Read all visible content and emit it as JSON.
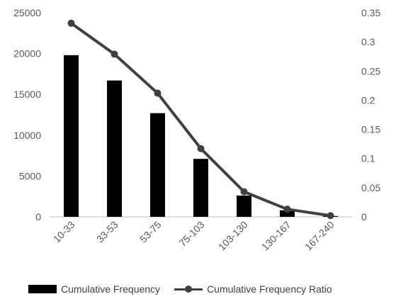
{
  "chart_data": {
    "type": "bar+line",
    "categories": [
      "10-33",
      "33-53",
      "53-75",
      "75-103",
      "103-130",
      "130-167",
      "167-240"
    ],
    "series": [
      {
        "name": "Cumulative Frequency",
        "type": "bar",
        "axis": "left",
        "values": [
          19800,
          16700,
          12700,
          7100,
          2600,
          800,
          100
        ]
      },
      {
        "name": "Cumulative Frequency Ratio",
        "type": "line",
        "axis": "right",
        "values": [
          0.332,
          0.279,
          0.212,
          0.117,
          0.043,
          0.013,
          0.002
        ]
      }
    ],
    "y_left": {
      "min": 0,
      "max": 25000,
      "ticks": [
        0,
        5000,
        10000,
        15000,
        20000,
        25000
      ]
    },
    "y_right": {
      "min": 0,
      "max": 0.35,
      "ticks": [
        "0",
        "0.05",
        "0.1",
        "0.15",
        "0.2",
        "0.25",
        "0.3",
        "0.35"
      ]
    },
    "grid": false,
    "legend_position": "bottom",
    "colors": {
      "bar": "#000000",
      "line": "#404040"
    }
  }
}
